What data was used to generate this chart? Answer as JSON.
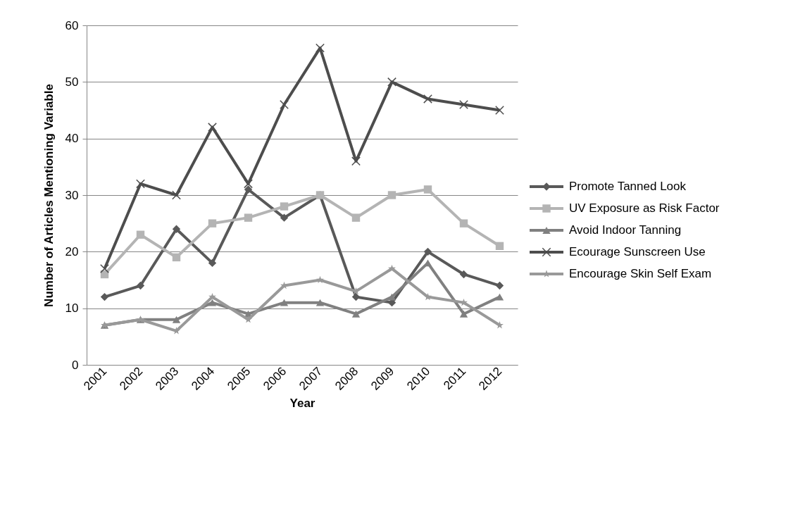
{
  "chart_data": {
    "type": "line",
    "xlabel": "Year",
    "ylabel": "Number of Articles Mentioning Variable",
    "categories": [
      "2001",
      "2002",
      "2003",
      "2004",
      "2005",
      "2006",
      "2007",
      "2008",
      "2009",
      "2010",
      "2011",
      "2012"
    ],
    "series": [
      {
        "name": "Promote Tanned Look",
        "color": "#595959",
        "marker": "diamond",
        "values": [
          12,
          14,
          24,
          18,
          31,
          26,
          30,
          12,
          11,
          20,
          16,
          14
        ]
      },
      {
        "name": "UV Exposure as Risk Factor",
        "color": "#b4b4b4",
        "marker": "square",
        "values": [
          16,
          23,
          19,
          25,
          26,
          28,
          30,
          26,
          30,
          31,
          25,
          21
        ]
      },
      {
        "name": "Avoid Indoor Tanning",
        "color": "#808080",
        "marker": "triangle",
        "values": [
          7,
          8,
          8,
          11,
          9,
          11,
          11,
          9,
          12,
          18,
          9,
          12
        ]
      },
      {
        "name": "Ecourage Sunscreen Use",
        "color": "#4d4d4d",
        "marker": "cross",
        "values": [
          17,
          32,
          30,
          42,
          32,
          46,
          56,
          36,
          50,
          47,
          46,
          45
        ]
      },
      {
        "name": "Encourage Skin Self Exam",
        "color": "#999999",
        "marker": "star",
        "values": [
          7,
          8,
          6,
          12,
          8,
          14,
          15,
          13,
          17,
          12,
          11,
          7
        ]
      }
    ],
    "ylim": [
      0,
      60
    ],
    "yticks": [
      0,
      10,
      20,
      30,
      40,
      50,
      60
    ],
    "grid": "y",
    "legend": "right"
  }
}
